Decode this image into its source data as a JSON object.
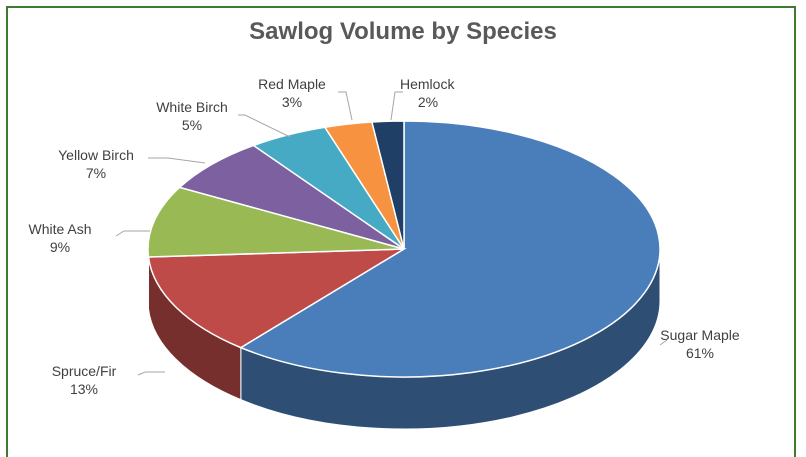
{
  "chart_data": {
    "type": "pie",
    "title": "Sawlog Volume by Species",
    "style": "3d",
    "slices": [
      {
        "name": "Sugar Maple",
        "value": 61,
        "label": "61%",
        "color": "#4a7ebb"
      },
      {
        "name": "Spruce/Fir",
        "value": 13,
        "label": "13%",
        "color": "#be4b48"
      },
      {
        "name": "White Ash",
        "value": 9,
        "label": "9%",
        "color": "#98b954"
      },
      {
        "name": "Yellow Birch",
        "value": 7,
        "label": "7%",
        "color": "#7d60a0"
      },
      {
        "name": "White Birch",
        "value": 5,
        "label": "5%",
        "color": "#46aac5"
      },
      {
        "name": "Red Maple",
        "value": 3,
        "label": "3%",
        "color": "#f69240"
      },
      {
        "name": "Hemlock",
        "value": 2,
        "label": "2%",
        "color": "#1f3f66"
      }
    ]
  }
}
